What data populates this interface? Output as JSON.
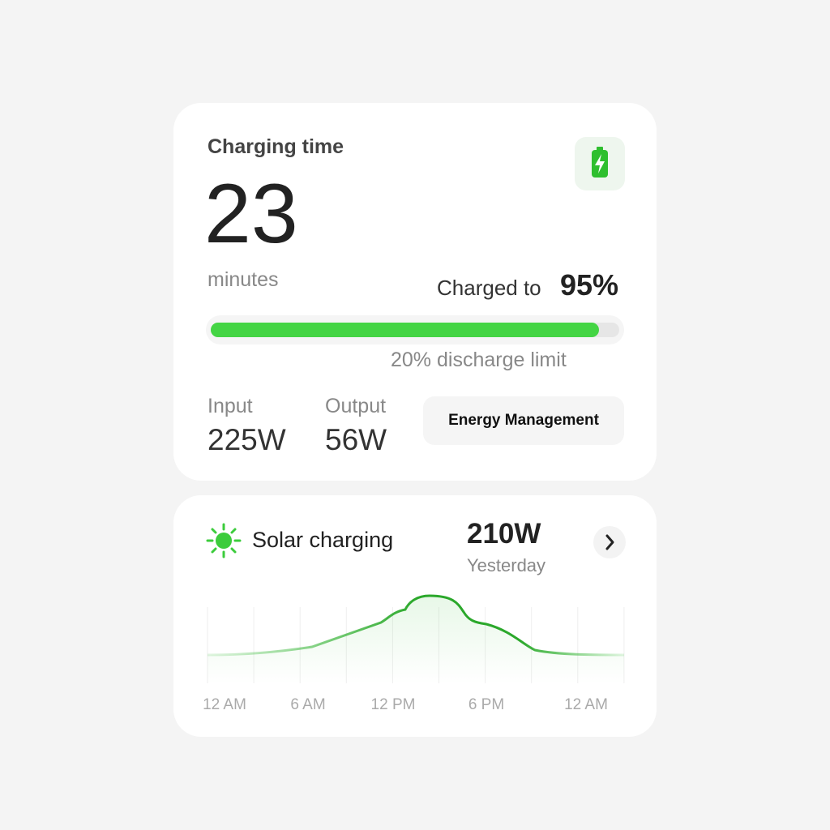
{
  "status_card": {
    "title": "Charging time",
    "time_value": "23",
    "time_unit": "minutes",
    "charged_label": "Charged to",
    "charged_percent": {
      "value": 95,
      "label": "95%"
    },
    "discharge_limit": "20% discharge limit",
    "input": {
      "label": "Input",
      "value": "225W"
    },
    "output": {
      "label": "Output",
      "value": "56W"
    },
    "button": "Energy Management"
  },
  "solar_card": {
    "title": "Solar charging",
    "power": "210W",
    "period": "Yesterday",
    "x_labels": [
      "12 AM",
      "6 AM",
      "12 PM",
      "6 PM",
      "12 AM"
    ]
  }
}
